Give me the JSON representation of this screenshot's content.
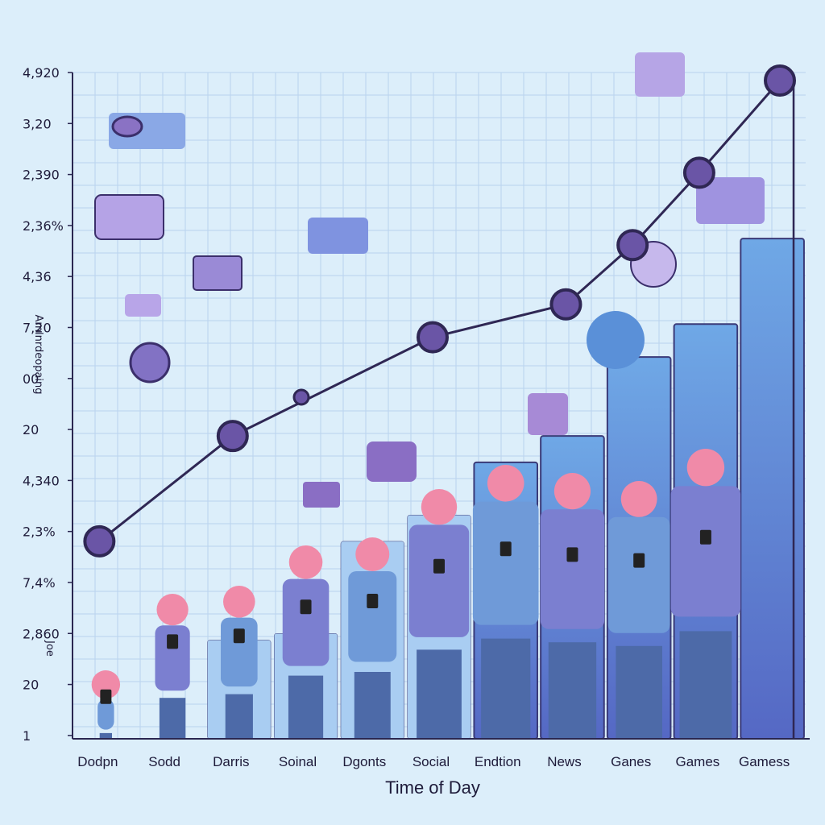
{
  "chart_data": {
    "type": "bar",
    "xlabel": "Time of Day",
    "ylabel": "Amlnrdeopaing",
    "ylabel_side": "Joe",
    "y_tick_labels": [
      "4,920",
      "3,20",
      "2,390",
      "2,36%",
      "4,36",
      "7,20",
      "00",
      "20",
      "4,340",
      "2,3%",
      "7,4%",
      "2,860",
      "20",
      "1"
    ],
    "categories": [
      "Dodpn",
      "Sodd",
      "Darris",
      "Soinal",
      "Dgonts",
      "Social",
      "Endtion",
      "News",
      "Ganes",
      "Games",
      "Gamess"
    ],
    "series": [
      {
        "type": "bar",
        "values": [
          0,
          0,
          15,
          16,
          30,
          34,
          42,
          46,
          58,
          63,
          76
        ]
      },
      {
        "type": "line",
        "values": [
          30,
          0,
          46,
          0,
          0,
          61,
          0,
          66,
          75,
          86,
          100
        ]
      }
    ],
    "ylim": [
      0,
      100
    ],
    "grid": true,
    "colors": {
      "bar": "#5b8fd8",
      "bar_light": "#a9cdf2",
      "line": "#2f2754",
      "marker": "#6a55a6",
      "axis": "#2a2750",
      "grid": "#b9d3ee"
    }
  }
}
